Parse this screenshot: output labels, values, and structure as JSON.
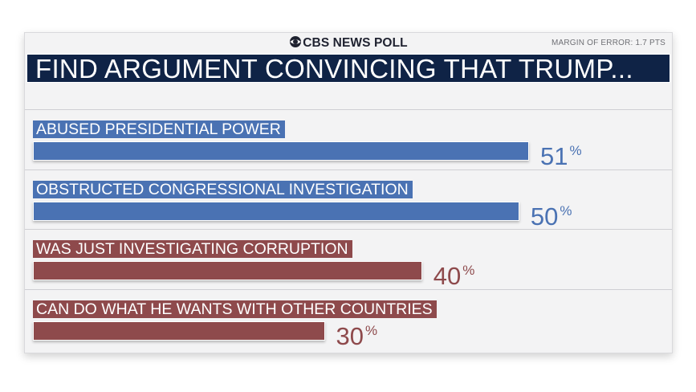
{
  "header": {
    "brand": "CBS NEWS POLL",
    "margin_of_error": "MARGIN OF ERROR: 1.7 PTS",
    "title": "FIND ARGUMENT CONVINCING THAT TRUMP..."
  },
  "colors": {
    "blue": "#4a72b3",
    "red": "#8e4a4c",
    "title_bg": "#0f2346"
  },
  "chart_data": {
    "type": "bar",
    "orientation": "horizontal",
    "title": "FIND ARGUMENT CONVINCING THAT TRUMP...",
    "categories": [
      "ABUSED PRESIDENTIAL POWER",
      "OBSTRUCTED CONGRESSIONAL INVESTIGATION",
      "WAS JUST INVESTIGATING CORRUPTION",
      "CAN DO WHAT HE WANTS WITH OTHER COUNTRIES"
    ],
    "values": [
      51,
      50,
      40,
      30
    ],
    "value_labels": [
      "51",
      "50",
      "40",
      "30"
    ],
    "unit": "%",
    "bar_colors": [
      "#4a72b3",
      "#4a72b3",
      "#8e4a4c",
      "#8e4a4c"
    ],
    "xlim": [
      0,
      100
    ]
  }
}
